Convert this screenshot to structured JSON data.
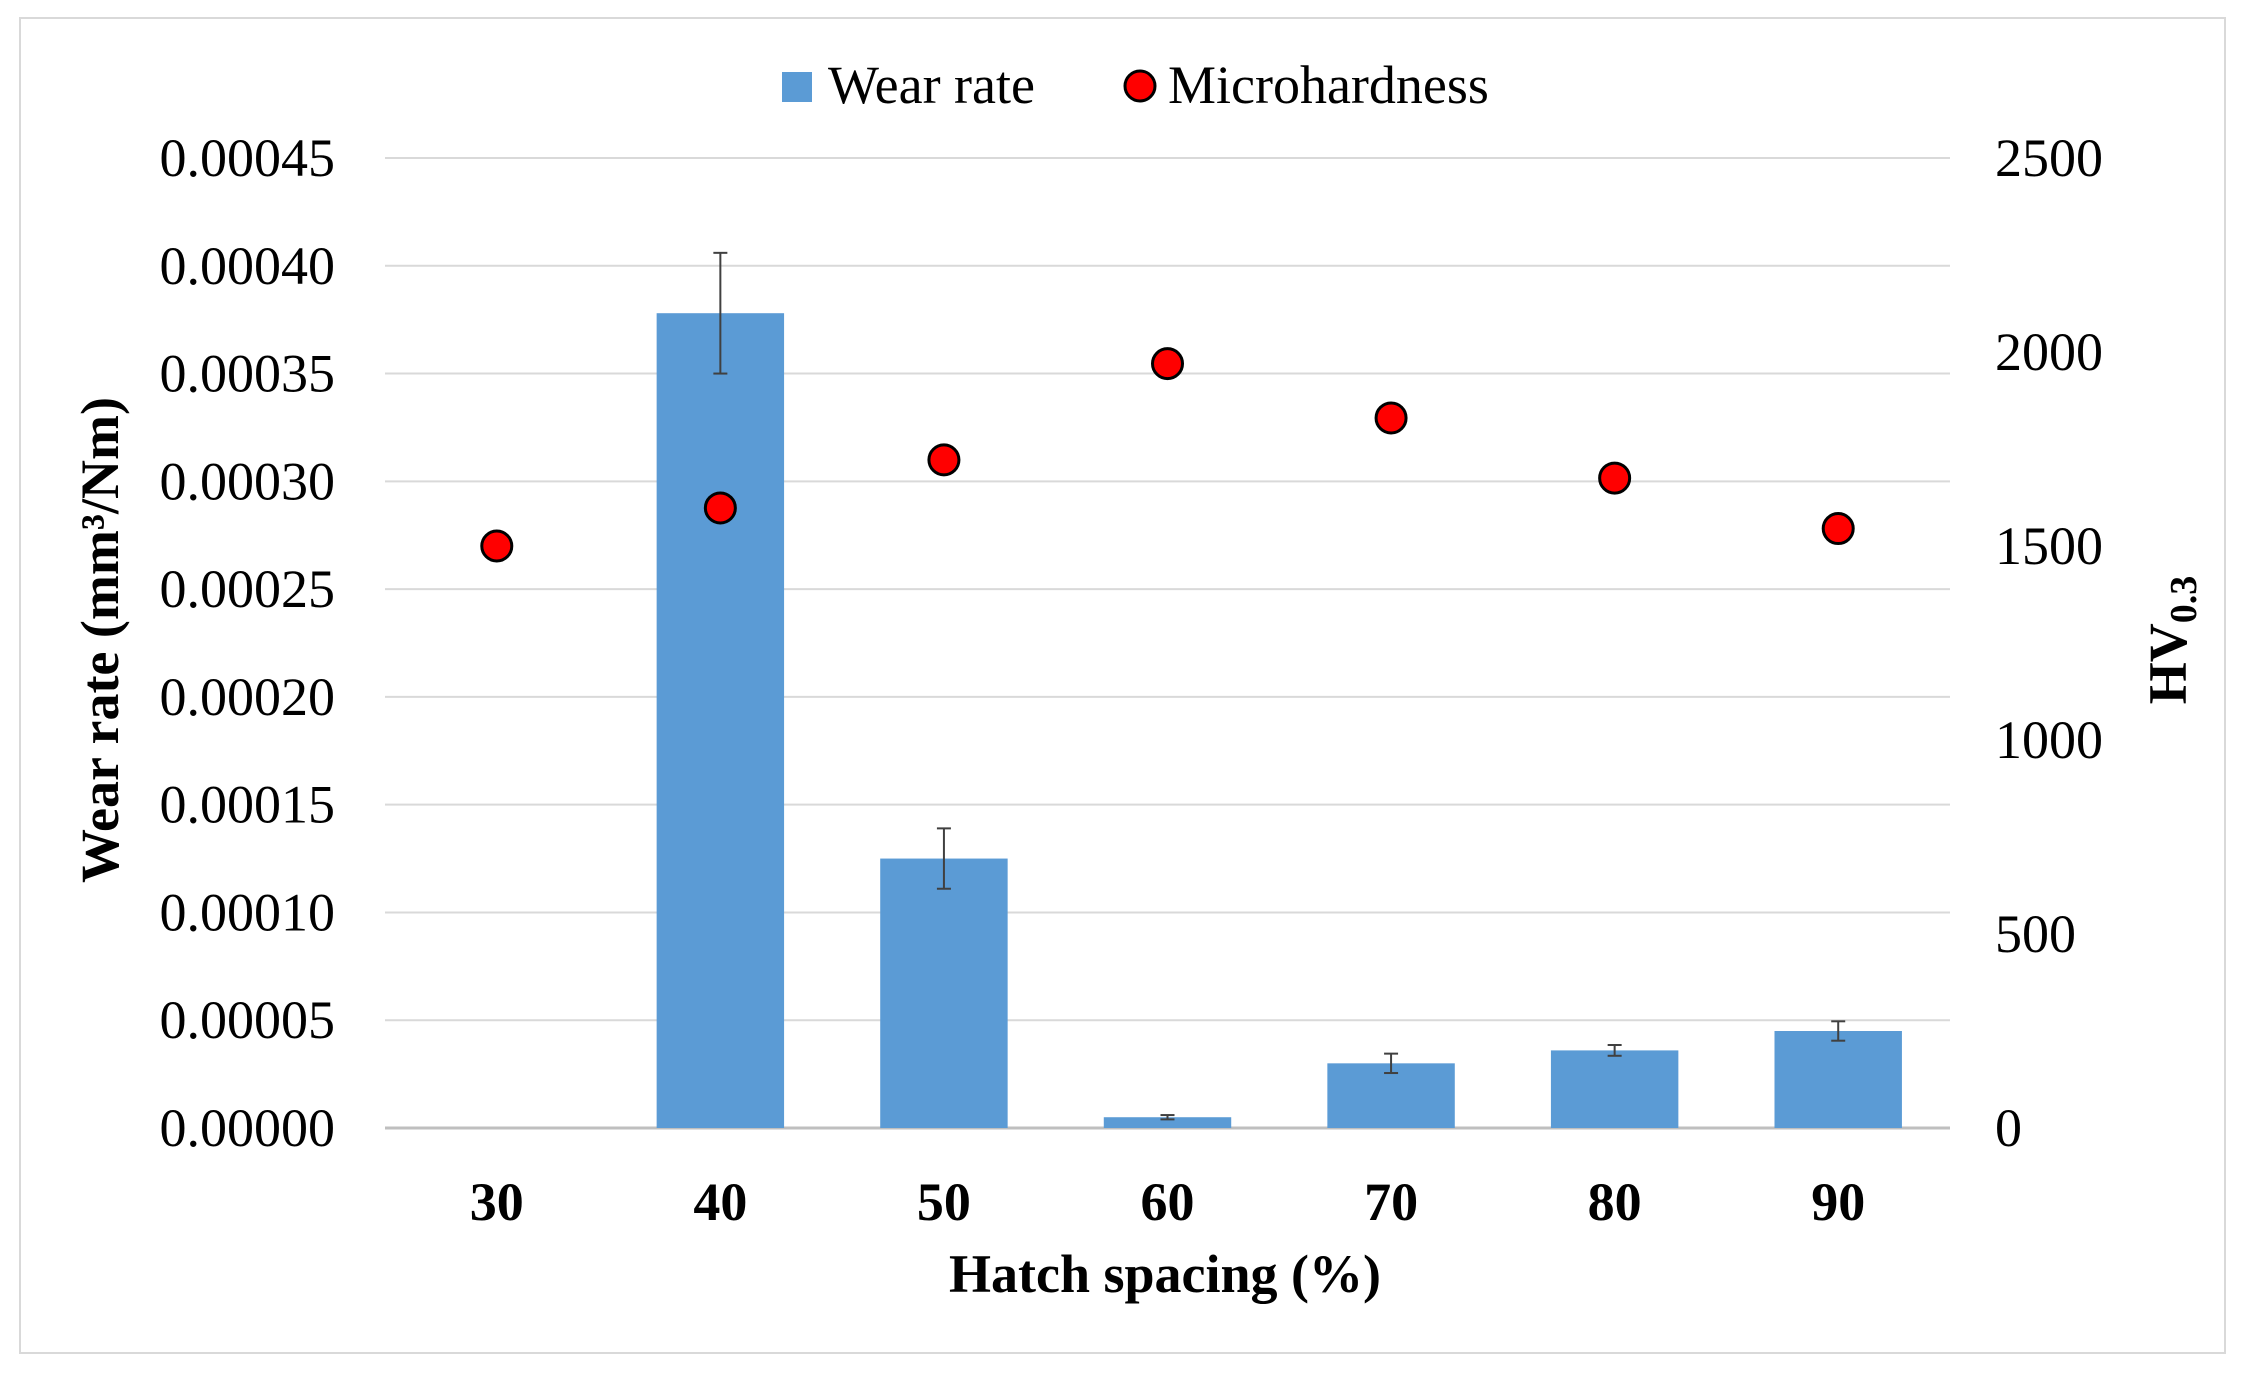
{
  "chart_data": {
    "type": "bar",
    "categories": [
      "30",
      "40",
      "50",
      "60",
      "70",
      "80",
      "90"
    ],
    "xlabel": "Hatch spacing (%)",
    "ylabel": "Wear rate (mm³/Nm)",
    "y2label_main": "HV",
    "y2label_sub": "0.3",
    "ylim": [
      0,
      0.00045
    ],
    "y2lim": [
      0,
      2500
    ],
    "yticks": [
      "0.00000",
      "0.00005",
      "0.00010",
      "0.00015",
      "0.00020",
      "0.00025",
      "0.00030",
      "0.00035",
      "0.00040",
      "0.00045"
    ],
    "y2ticks": [
      "0",
      "500",
      "1000",
      "1500",
      "2000",
      "2500"
    ],
    "legend_position": "top-center",
    "grid": true,
    "series": [
      {
        "name": "Wear rate",
        "kind": "bar",
        "axis": "left",
        "color": "#5B9BD5",
        "values": [
          0,
          0.000378,
          0.000125,
          5e-06,
          3e-05,
          3.6e-05,
          4.5e-05
        ],
        "errors": [
          0,
          2.8e-05,
          1.4e-05,
          1e-06,
          4.5e-06,
          2.5e-06,
          4.5e-06
        ]
      },
      {
        "name": "Microhardness",
        "kind": "scatter",
        "axis": "right",
        "color": "#FF0000",
        "values": [
          1500,
          1598,
          1722,
          1970,
          1830,
          1675,
          1545
        ]
      }
    ]
  }
}
